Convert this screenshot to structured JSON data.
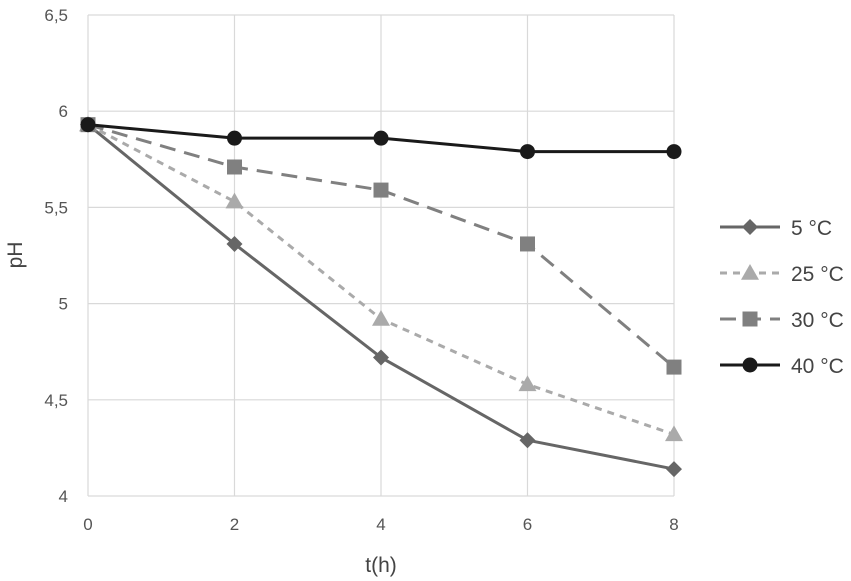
{
  "chart_data": {
    "type": "line",
    "xlabel": "t(h)",
    "ylabel": "pH",
    "x": [
      0,
      2,
      4,
      6,
      8
    ],
    "x_ticks": [
      "0",
      "2",
      "4",
      "6",
      "8"
    ],
    "y_ticks": [
      "4",
      "4,5",
      "5",
      "5,5",
      "6",
      "6,5"
    ],
    "xlim": [
      0,
      8
    ],
    "ylim": [
      4,
      6.5
    ],
    "grid": true,
    "legend_position": "right",
    "series": [
      {
        "name": "5 °C",
        "values": [
          5.93,
          5.31,
          4.72,
          4.29,
          4.14
        ],
        "color": "#666666",
        "dash": "solid",
        "marker": "diamond"
      },
      {
        "name": "25 °C",
        "values": [
          5.93,
          5.53,
          4.92,
          4.58,
          4.32
        ],
        "color": "#aaaaaa",
        "dash": "short-dash",
        "marker": "triangle"
      },
      {
        "name": "30 °C",
        "values": [
          5.93,
          5.71,
          5.59,
          5.31,
          4.67
        ],
        "color": "#808080",
        "dash": "long-dash",
        "marker": "square"
      },
      {
        "name": "40 °C",
        "values": [
          5.93,
          5.86,
          5.86,
          5.79,
          5.79
        ],
        "color": "#1a1a1a",
        "dash": "solid",
        "marker": "circle"
      }
    ]
  }
}
